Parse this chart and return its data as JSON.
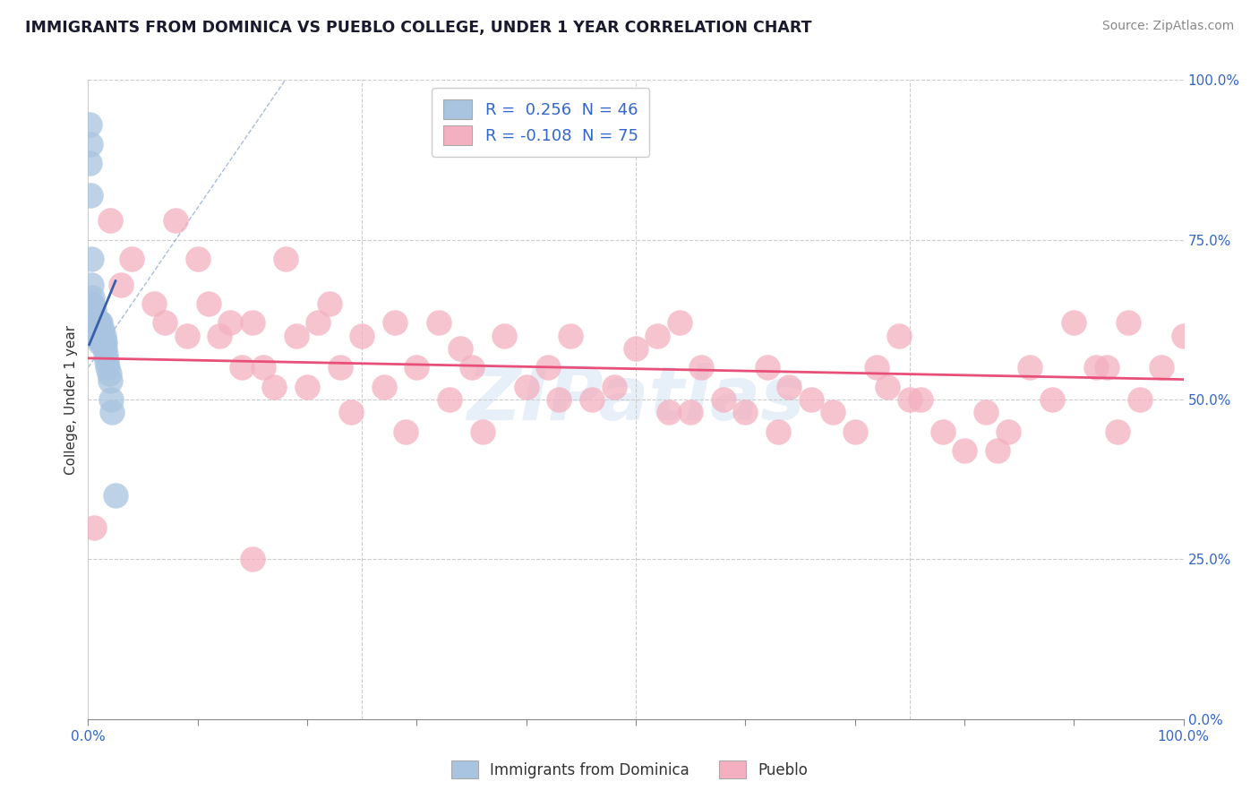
{
  "title": "IMMIGRANTS FROM DOMINICA VS PUEBLO COLLEGE, UNDER 1 YEAR CORRELATION CHART",
  "source": "Source: ZipAtlas.com",
  "ylabel": "College, Under 1 year",
  "xlim": [
    0,
    1
  ],
  "ylim": [
    0,
    1
  ],
  "yticks_right": [
    0.0,
    0.25,
    0.5,
    0.75,
    1.0
  ],
  "ytick_labels_right": [
    "0.0%",
    "25.0%",
    "50.0%",
    "75.0%",
    "100.0%"
  ],
  "legend_blue_label": "R =  0.256  N = 46",
  "legend_pink_label": "R = -0.108  N = 75",
  "legend_series1": "Immigrants from Dominica",
  "legend_series2": "Pueblo",
  "blue_color": "#a8c4e0",
  "pink_color": "#f4b0c0",
  "blue_line_color": "#3a5fa8",
  "pink_line_color": "#e8507a",
  "blue_R": 0.256,
  "pink_R": -0.108,
  "watermark": "ZIPatlas",
  "blue_scatter_x": [
    0.001,
    0.001,
    0.002,
    0.002,
    0.003,
    0.003,
    0.003,
    0.004,
    0.004,
    0.004,
    0.005,
    0.005,
    0.005,
    0.005,
    0.006,
    0.006,
    0.006,
    0.007,
    0.007,
    0.007,
    0.008,
    0.008,
    0.008,
    0.009,
    0.009,
    0.009,
    0.01,
    0.01,
    0.011,
    0.011,
    0.012,
    0.012,
    0.013,
    0.013,
    0.014,
    0.014,
    0.015,
    0.015,
    0.016,
    0.017,
    0.018,
    0.019,
    0.02,
    0.021,
    0.022,
    0.025
  ],
  "blue_scatter_y": [
    0.93,
    0.87,
    0.9,
    0.82,
    0.72,
    0.68,
    0.65,
    0.66,
    0.65,
    0.63,
    0.64,
    0.63,
    0.62,
    0.61,
    0.62,
    0.61,
    0.6,
    0.62,
    0.61,
    0.6,
    0.62,
    0.61,
    0.6,
    0.62,
    0.61,
    0.6,
    0.62,
    0.59,
    0.62,
    0.6,
    0.61,
    0.59,
    0.61,
    0.6,
    0.6,
    0.59,
    0.59,
    0.58,
    0.57,
    0.56,
    0.55,
    0.54,
    0.53,
    0.5,
    0.48,
    0.35
  ],
  "pink_scatter_x": [
    0.005,
    0.02,
    0.04,
    0.06,
    0.08,
    0.09,
    0.1,
    0.11,
    0.12,
    0.13,
    0.14,
    0.15,
    0.16,
    0.17,
    0.18,
    0.19,
    0.2,
    0.21,
    0.22,
    0.23,
    0.25,
    0.27,
    0.28,
    0.29,
    0.3,
    0.32,
    0.34,
    0.36,
    0.38,
    0.4,
    0.42,
    0.44,
    0.46,
    0.48,
    0.5,
    0.52,
    0.54,
    0.56,
    0.58,
    0.6,
    0.62,
    0.64,
    0.66,
    0.68,
    0.7,
    0.72,
    0.74,
    0.76,
    0.78,
    0.8,
    0.82,
    0.84,
    0.86,
    0.88,
    0.9,
    0.92,
    0.94,
    0.96,
    0.98,
    1.0,
    0.03,
    0.07,
    0.24,
    0.33,
    0.43,
    0.53,
    0.63,
    0.73,
    0.83,
    0.93,
    0.15,
    0.35,
    0.55,
    0.75,
    0.95
  ],
  "pink_scatter_y": [
    0.3,
    0.78,
    0.72,
    0.65,
    0.78,
    0.6,
    0.72,
    0.65,
    0.6,
    0.62,
    0.55,
    0.62,
    0.55,
    0.52,
    0.72,
    0.6,
    0.52,
    0.62,
    0.65,
    0.55,
    0.6,
    0.52,
    0.62,
    0.45,
    0.55,
    0.62,
    0.58,
    0.45,
    0.6,
    0.52,
    0.55,
    0.6,
    0.5,
    0.52,
    0.58,
    0.6,
    0.62,
    0.55,
    0.5,
    0.48,
    0.55,
    0.52,
    0.5,
    0.48,
    0.45,
    0.55,
    0.6,
    0.5,
    0.45,
    0.42,
    0.48,
    0.45,
    0.55,
    0.5,
    0.62,
    0.55,
    0.45,
    0.5,
    0.55,
    0.6,
    0.68,
    0.62,
    0.48,
    0.5,
    0.5,
    0.48,
    0.45,
    0.52,
    0.42,
    0.55,
    0.25,
    0.55,
    0.48,
    0.5,
    0.62
  ],
  "ref_line_x": [
    0.0,
    0.18
  ],
  "ref_line_y": [
    0.55,
    1.0
  ]
}
